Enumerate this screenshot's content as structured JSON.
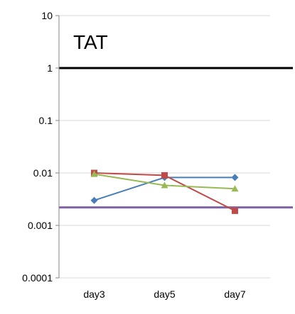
{
  "chart_data": {
    "type": "line",
    "title": "TAT",
    "xlabel": "",
    "ylabel": "",
    "y_scale": "log",
    "ylim": [
      0.0001,
      10
    ],
    "y_ticks": [
      {
        "value": 10,
        "label": "10"
      },
      {
        "value": 1,
        "label": "1"
      },
      {
        "value": 0.1,
        "label": "0.1"
      },
      {
        "value": 0.01,
        "label": "0.01"
      },
      {
        "value": 0.001,
        "label": "0.001"
      },
      {
        "value": 0.0001,
        "label": "0.0001"
      }
    ],
    "categories": [
      "day3",
      "day5",
      "day7"
    ],
    "grid": true,
    "legend": "none",
    "series": [
      {
        "color": "#4a7ebb",
        "marker": "diamond",
        "values": [
          0.003,
          0.0082,
          0.0082
        ]
      },
      {
        "color": "#be4b48",
        "marker": "square",
        "values": [
          0.01,
          0.009,
          0.0019
        ]
      },
      {
        "color": "#98b954",
        "marker": "triangle",
        "values": [
          0.0095,
          0.0058,
          0.005
        ]
      }
    ],
    "reference_lines": [
      {
        "value": 1,
        "color": "#000000"
      },
      {
        "value": 0.0022,
        "color": "#8064a2"
      }
    ]
  }
}
